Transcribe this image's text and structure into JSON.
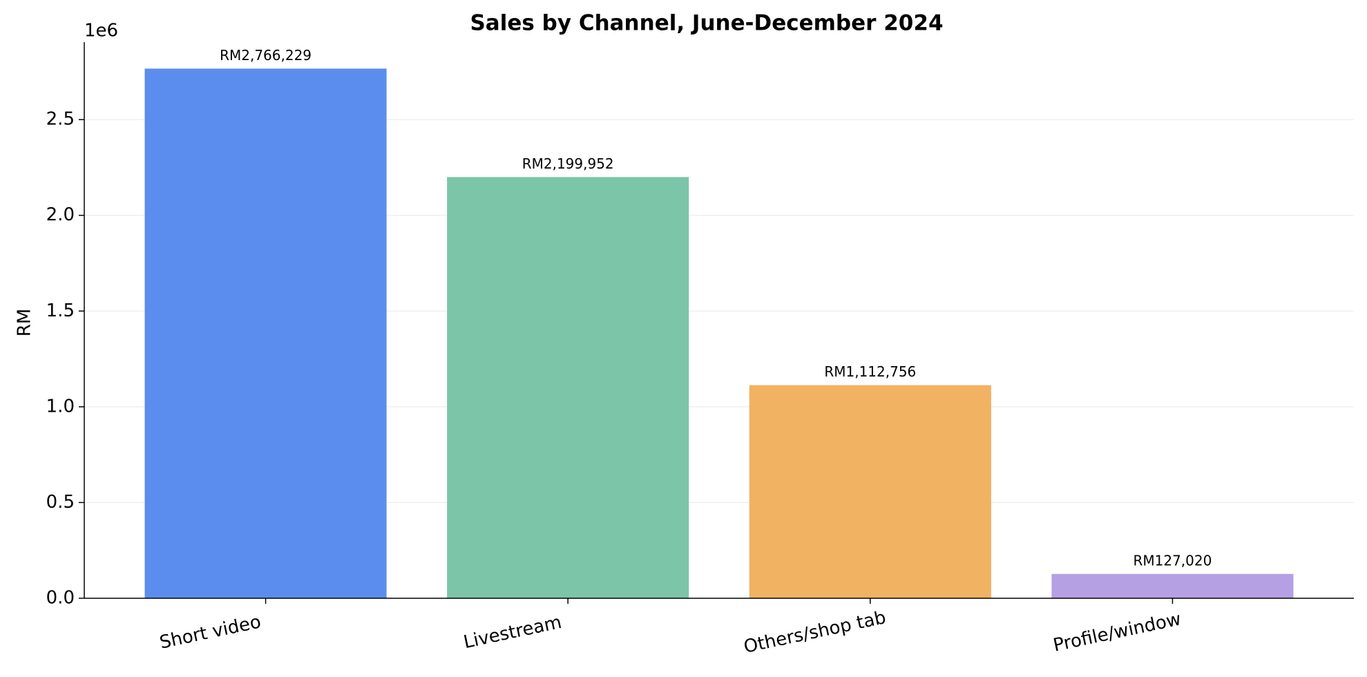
{
  "chart_data": {
    "type": "bar",
    "title": "Sales by Channel, June-December 2024",
    "ylabel": "RM",
    "y_offset_label": "1e6",
    "categories": [
      "Short video",
      "Livestream",
      "Others/shop tab",
      "Profile/window"
    ],
    "values": [
      2766229,
      2199952,
      1112756,
      127020
    ],
    "value_labels": [
      "RM2,766,229",
      "RM2,199,952",
      "RM1,112,756",
      "RM127,020"
    ],
    "colors": [
      "#5b8def",
      "#7cc5a8",
      "#f1b262",
      "#b5a0e3"
    ],
    "ylim": [
      0,
      2904540
    ],
    "yticks": [
      {
        "value": 0,
        "label": "0.0"
      },
      {
        "value": 500000,
        "label": "0.5"
      },
      {
        "value": 1000000,
        "label": "1.0"
      },
      {
        "value": 1500000,
        "label": "1.5"
      },
      {
        "value": 2000000,
        "label": "2.0"
      },
      {
        "value": 2500000,
        "label": "2.5"
      }
    ],
    "grid": true
  }
}
